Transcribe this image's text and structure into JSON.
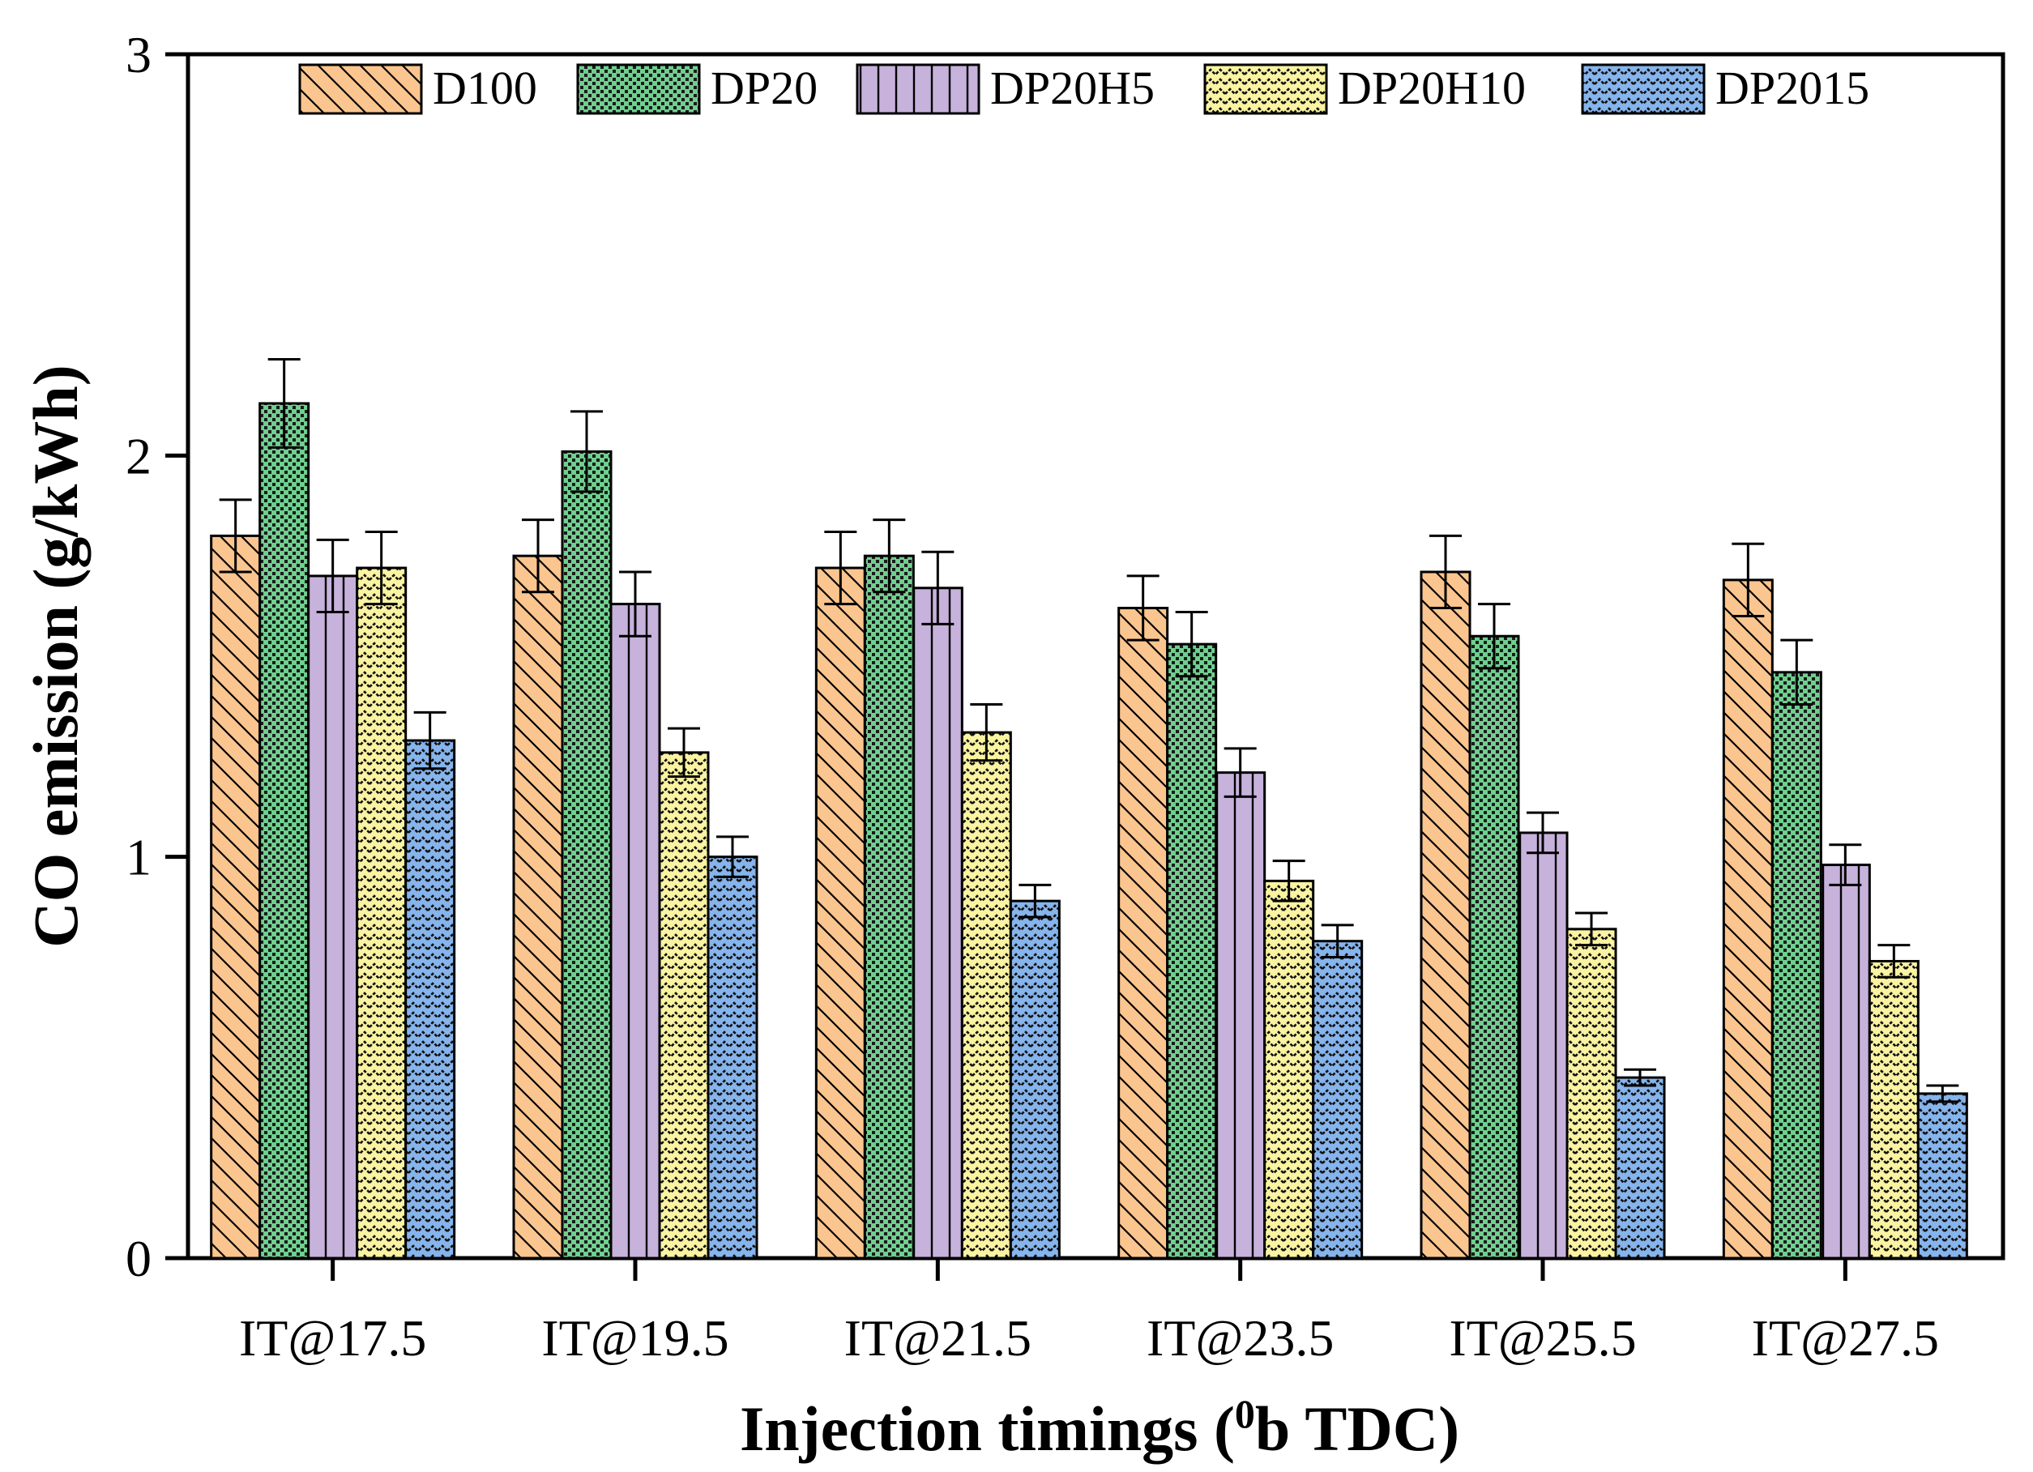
{
  "chart_data": {
    "type": "bar",
    "title": "",
    "xlabel": "Injection timings (",
    "xlabel_superscript": "0",
    "xlabel_suffix": "b TDC)",
    "ylabel": "CO emission (g/kWh)",
    "ylim": [
      0,
      3
    ],
    "yticks": [
      0,
      1,
      2,
      3
    ],
    "categories": [
      "IT@17.5",
      "IT@19.5",
      "IT@21.5",
      "IT@23.5",
      "IT@25.5",
      "IT@27.5"
    ],
    "legend_position": "top",
    "series": [
      {
        "name": "D100",
        "color": "#FBC58F",
        "pattern": "diag",
        "values": [
          1.8,
          1.75,
          1.72,
          1.62,
          1.71,
          1.69
        ],
        "errors": [
          0.09,
          0.09,
          0.09,
          0.08,
          0.09,
          0.09
        ]
      },
      {
        "name": "DP20",
        "color": "#6FCF8F",
        "pattern": "dots",
        "values": [
          2.13,
          2.01,
          1.75,
          1.53,
          1.55,
          1.46
        ],
        "errors": [
          0.11,
          0.1,
          0.09,
          0.08,
          0.08,
          0.08
        ]
      },
      {
        "name": "DP20H5",
        "color": "#C7B2DC",
        "pattern": "vlines",
        "values": [
          1.7,
          1.63,
          1.67,
          1.21,
          1.06,
          0.98
        ],
        "errors": [
          0.09,
          0.08,
          0.09,
          0.06,
          0.05,
          0.05
        ]
      },
      {
        "name": "DP20H10",
        "color": "#FAF4A2",
        "pattern": "zig",
        "values": [
          1.72,
          1.26,
          1.31,
          0.94,
          0.82,
          0.74
        ],
        "errors": [
          0.09,
          0.06,
          0.07,
          0.05,
          0.04,
          0.04
        ]
      },
      {
        "name": "DP2015",
        "color": "#86B4EC",
        "pattern": "zig",
        "values": [
          1.29,
          1.0,
          0.89,
          0.79,
          0.45,
          0.41
        ],
        "errors": [
          0.07,
          0.05,
          0.04,
          0.04,
          0.02,
          0.02
        ]
      }
    ]
  }
}
